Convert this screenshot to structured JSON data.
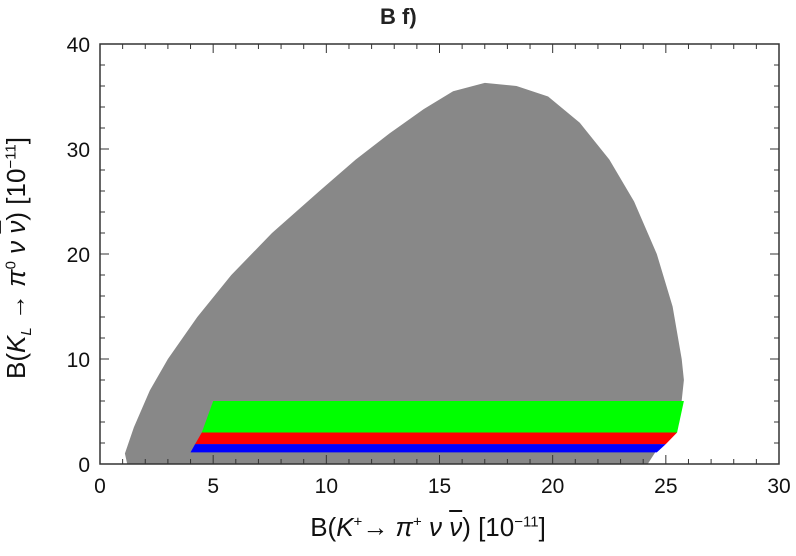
{
  "chart_data": {
    "type": "area",
    "title": "B f)",
    "xlabel": {
      "pre": "B(",
      "k": "K",
      "ksup": "+",
      "arrow": "→ ",
      "pi": "π",
      "pisup": "+",
      "nu": " ν ",
      "nubar": "ν",
      "post": ") [10",
      "exp": "−11",
      "close": "]"
    },
    "ylabel": {
      "pre": "B(",
      "k": "K",
      "ksub": "L",
      "arrow": " → ",
      "pi": "π",
      "pisup": "0",
      "nu": " ν ",
      "nubar": "ν",
      "post": ") [10",
      "exp": "−11",
      "close": "]"
    },
    "xlim": [
      0,
      30
    ],
    "ylim": [
      0,
      40
    ],
    "xticks": [
      0,
      5,
      10,
      15,
      20,
      25,
      30
    ],
    "yticks": [
      0,
      10,
      20,
      30,
      40
    ],
    "grid": false,
    "regions": [
      {
        "color": "#888888",
        "points": [
          [
            1.2,
            0
          ],
          [
            1.1,
            1
          ],
          [
            1.5,
            3.5
          ],
          [
            2.2,
            7
          ],
          [
            3.0,
            10
          ],
          [
            4.3,
            14
          ],
          [
            5.8,
            18
          ],
          [
            7.6,
            22
          ],
          [
            9.7,
            26
          ],
          [
            11.3,
            29
          ],
          [
            12.8,
            31.5
          ],
          [
            14.3,
            33.8
          ],
          [
            15.6,
            35.5
          ],
          [
            17.0,
            36.3
          ],
          [
            18.4,
            36
          ],
          [
            19.8,
            35
          ],
          [
            21.2,
            32.5
          ],
          [
            22.5,
            29
          ],
          [
            23.6,
            25
          ],
          [
            24.6,
            20
          ],
          [
            25.3,
            15
          ],
          [
            25.7,
            10
          ],
          [
            25.8,
            8
          ],
          [
            25.6,
            4
          ],
          [
            24.8,
            2
          ],
          [
            24.2,
            0
          ]
        ]
      },
      {
        "color": "#00ff00",
        "points": [
          [
            4.5,
            3.0
          ],
          [
            5.0,
            6.0
          ],
          [
            25.8,
            6.0
          ],
          [
            25.5,
            3.0
          ]
        ]
      },
      {
        "color": "#ff0000",
        "points": [
          [
            4.2,
            1.9
          ],
          [
            4.5,
            3.0
          ],
          [
            25.5,
            3.0
          ],
          [
            25.0,
            1.9
          ]
        ]
      },
      {
        "color": "#0000ff",
        "points": [
          [
            4.0,
            1.1
          ],
          [
            4.2,
            1.9
          ],
          [
            25.0,
            1.9
          ],
          [
            24.6,
            1.1
          ]
        ]
      }
    ]
  }
}
